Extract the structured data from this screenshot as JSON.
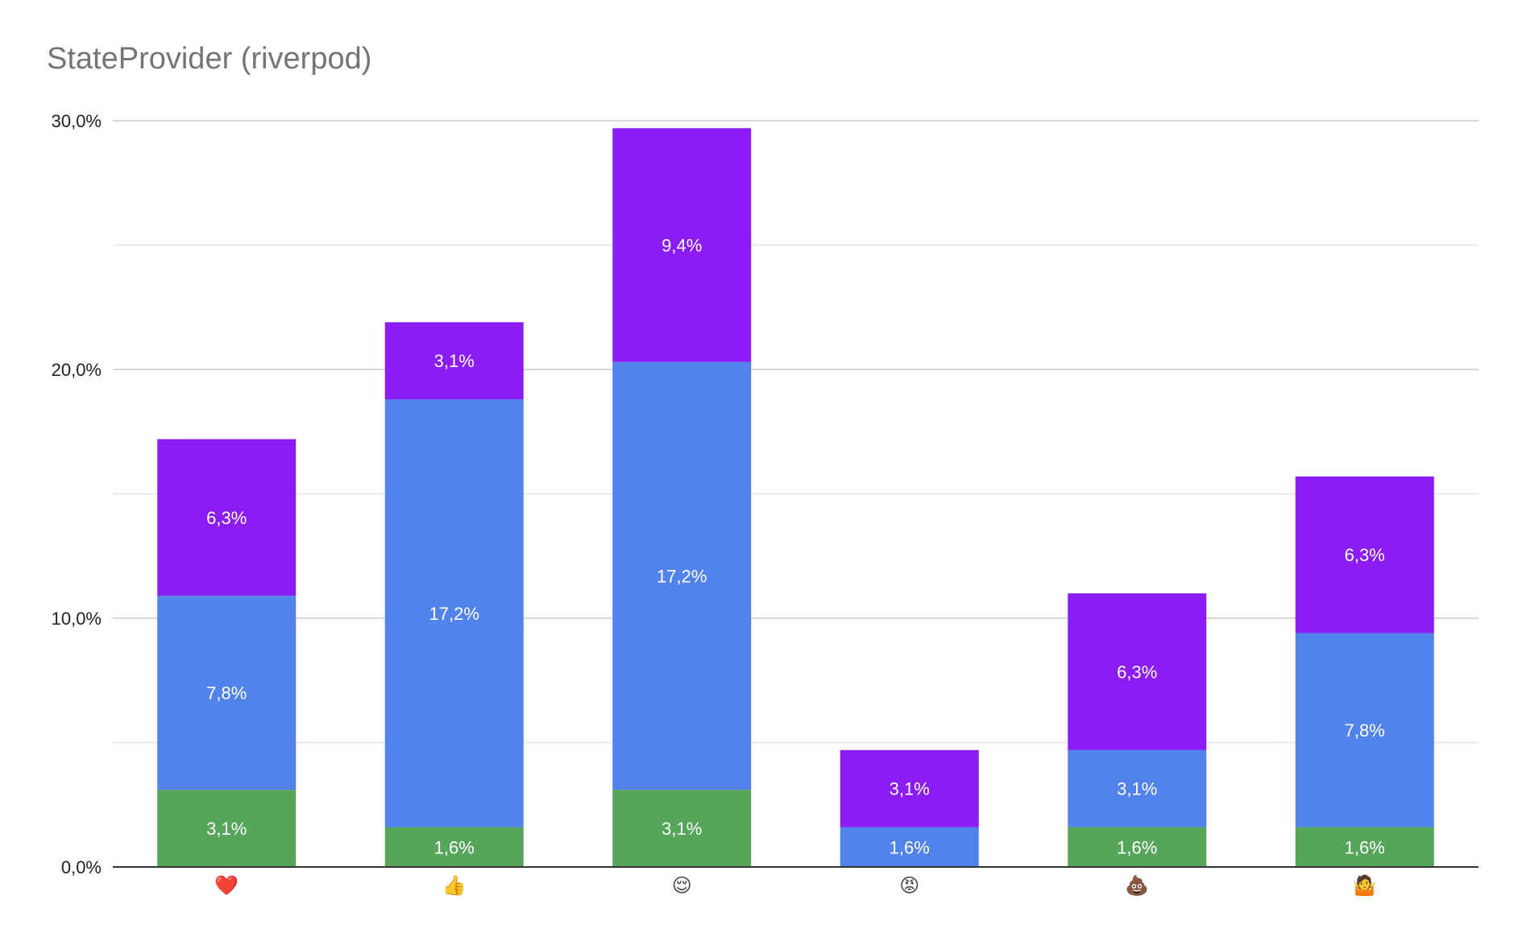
{
  "chart_data": {
    "type": "bar",
    "stacked": true,
    "title": "StateProvider (riverpod)",
    "xlabel": "",
    "ylabel": "",
    "ylim": [
      0,
      30
    ],
    "y_ticks": [
      "0,0%",
      "10,0%",
      "20,0%",
      "30,0%"
    ],
    "grid": true,
    "legend": "none",
    "categories": [
      "❤️",
      "👍",
      "😌",
      "😡",
      "💩",
      "🤷"
    ],
    "series": [
      {
        "color": "#57a55a",
        "values": [
          3.1,
          1.6,
          3.1,
          0,
          1.6,
          1.6
        ],
        "labels": [
          "3,1%",
          "1,6%",
          "3,1%",
          "",
          "1,6%",
          "1,6%"
        ]
      },
      {
        "color": "#5283ec",
        "values": [
          7.8,
          17.2,
          17.2,
          1.6,
          3.1,
          7.8
        ],
        "labels": [
          "7,8%",
          "17,2%",
          "17,2%",
          "1,6%",
          "3,1%",
          "7,8%"
        ]
      },
      {
        "color": "#8b1cf3",
        "values": [
          6.3,
          3.1,
          9.4,
          3.1,
          6.3,
          6.3
        ],
        "labels": [
          "6,3%",
          "3,1%",
          "9,4%",
          "3,1%",
          "6,3%",
          "6,3%"
        ]
      }
    ]
  }
}
